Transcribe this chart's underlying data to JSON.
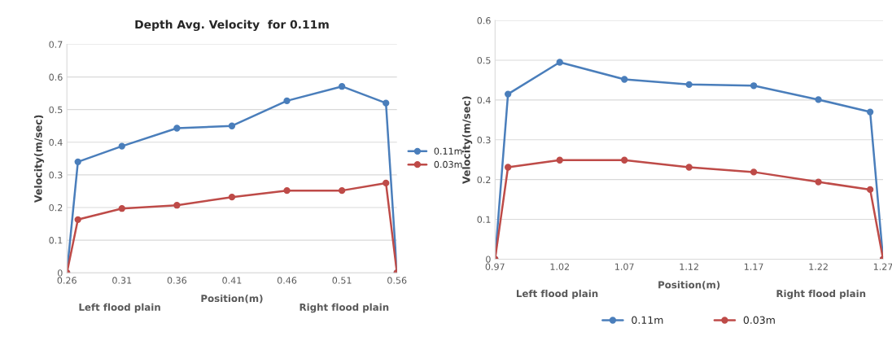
{
  "chart_data": [
    {
      "type": "line",
      "title": "Depth Avg. Velocity  for 0.11m",
      "xlabel": "Position(m)",
      "ylabel": "Velocity(m/sec)",
      "x": [
        0.26,
        0.27,
        0.31,
        0.36,
        0.41,
        0.46,
        0.51,
        0.55,
        0.56
      ],
      "series": [
        {
          "name": "0.11m",
          "color": "#4a7ebb",
          "values": [
            0,
            0.34,
            0.388,
            0.443,
            0.45,
            0.527,
            0.571,
            0.52,
            0
          ]
        },
        {
          "name": "0.03m",
          "color": "#be4b48",
          "values": [
            0,
            0.163,
            0.197,
            0.207,
            0.232,
            0.252,
            0.252,
            0.275,
            0
          ]
        }
      ],
      "xlim": [
        0.26,
        0.56
      ],
      "xticks": [
        0.26,
        0.31,
        0.36,
        0.41,
        0.46,
        0.51,
        0.56
      ],
      "ylim": [
        0,
        0.7
      ],
      "yticks": [
        0,
        0.1,
        0.2,
        0.3,
        0.4,
        0.5,
        0.6,
        0.7
      ],
      "annotations": [
        "Left flood plain",
        "Right flood plain"
      ],
      "grid": "y",
      "legend": "right",
      "marker": "circle",
      "line_style": "solid"
    },
    {
      "type": "line",
      "xlabel": "Position(m)",
      "ylabel": "Velocity(m/sec)",
      "x": [
        0.97,
        0.98,
        1.02,
        1.07,
        1.12,
        1.17,
        1.22,
        1.26,
        1.27
      ],
      "series": [
        {
          "name": "0.11m",
          "color": "#4a7ebb",
          "values": [
            0,
            0.415,
            0.495,
            0.452,
            0.439,
            0.436,
            0.401,
            0.37,
            0
          ]
        },
        {
          "name": "0.03m",
          "color": "#be4b48",
          "values": [
            0,
            0.231,
            0.249,
            0.249,
            0.231,
            0.219,
            0.194,
            0.175,
            0
          ]
        }
      ],
      "xlim": [
        0.97,
        1.27
      ],
      "xticks": [
        0.97,
        1.02,
        1.07,
        1.12,
        1.17,
        1.22,
        1.27
      ],
      "ylim": [
        0,
        0.6
      ],
      "yticks": [
        0,
        0.1,
        0.2,
        0.3,
        0.4,
        0.5,
        0.6
      ],
      "annotations": [
        "Left flood plain",
        "Right flood plain"
      ],
      "grid": "y",
      "legend": "bottom",
      "marker": "circle",
      "line_style": "solid"
    }
  ]
}
